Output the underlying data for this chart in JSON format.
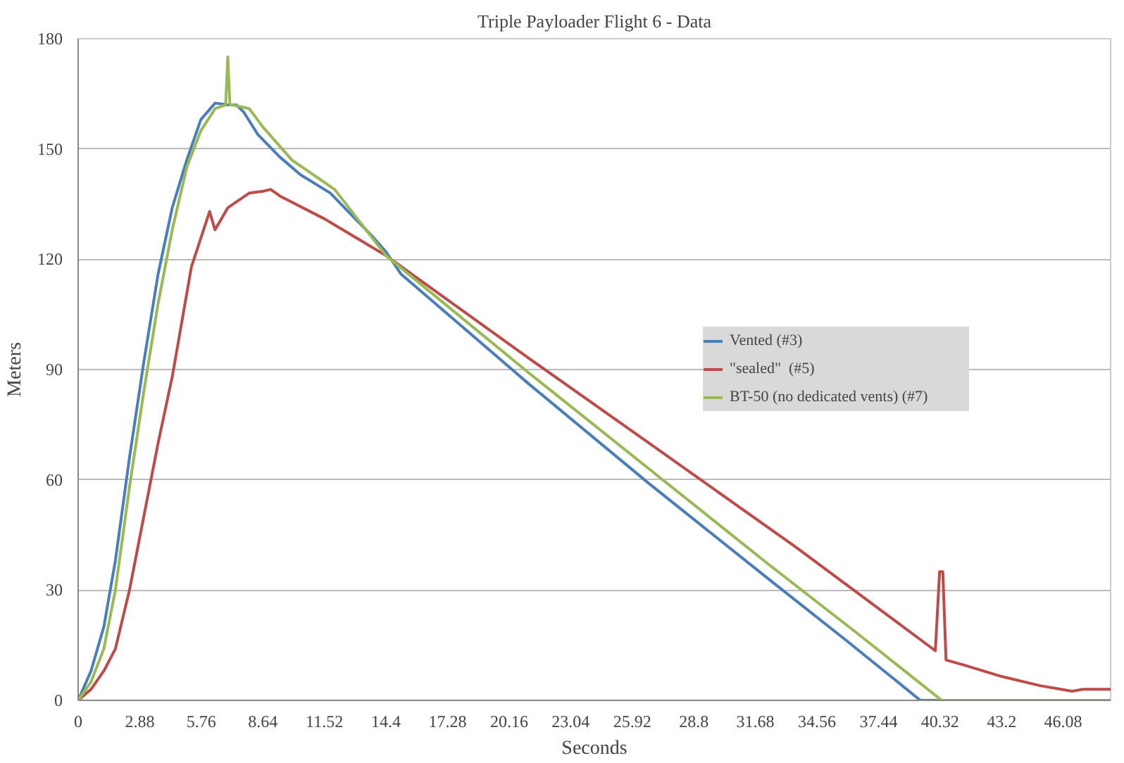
{
  "chart_data": {
    "type": "line",
    "title": "Triple Payloader Flight 6 - Data",
    "xlabel": "Seconds",
    "ylabel": "Meters",
    "xlim": [
      0,
      48.3
    ],
    "ylim": [
      0,
      180
    ],
    "xticks": [
      0,
      2.88,
      5.76,
      8.64,
      11.52,
      14.4,
      17.28,
      20.16,
      23.04,
      25.92,
      28.8,
      31.68,
      34.56,
      37.44,
      40.32,
      43.2,
      46.08
    ],
    "yticks": [
      0,
      30,
      60,
      90,
      120,
      150,
      180
    ],
    "grid": "y",
    "legend": "right",
    "line_style": "solid",
    "marker": "none",
    "series": [
      {
        "name": "Vented (#3)",
        "color": "#4a7ebb",
        "x": [
          0,
          0.6,
          1.2,
          1.74,
          2.4,
          3.07,
          3.74,
          4.4,
          5.08,
          5.74,
          6.41,
          7.0,
          7.4,
          7.75,
          8.4,
          9.4,
          10.4,
          11.8,
          13.8,
          14.4,
          15.1,
          21.1,
          26.7,
          32.3,
          36.0,
          39.4,
          41.0,
          44.0,
          48.3
        ],
        "values": [
          0,
          8,
          20,
          38,
          66,
          92,
          116,
          134,
          147,
          158,
          162.5,
          162,
          162,
          160,
          154,
          148,
          143,
          138,
          126,
          122,
          116,
          86,
          59,
          33,
          16,
          0,
          0,
          0,
          0
        ]
      },
      {
        "name": "\"sealed\"  (#5)",
        "color": "#be4b48",
        "x": [
          0,
          0.6,
          1.2,
          1.74,
          2.4,
          3.07,
          3.74,
          4.4,
          5.3,
          6.15,
          6.4,
          7.0,
          8.0,
          8.64,
          9.0,
          9.5,
          11.52,
          14.4,
          21.1,
          26.7,
          33.5,
          40.1,
          40.3,
          40.45,
          40.6,
          41.5,
          43.2,
          45.0,
          46.5,
          47.0,
          48.3
        ],
        "values": [
          0,
          3,
          8,
          14,
          30,
          50,
          70,
          88,
          118,
          133,
          128,
          134,
          138,
          138.5,
          139,
          137,
          131,
          121,
          93,
          70,
          42,
          13.5,
          35,
          35,
          11,
          9.5,
          6.5,
          4,
          2.5,
          3,
          3
        ]
      },
      {
        "name": "BT-50 (no dedicated vents) (#7)",
        "color": "#98b954",
        "x": [
          0,
          0.6,
          1.2,
          1.74,
          2.4,
          3.07,
          3.74,
          4.4,
          5.08,
          5.74,
          6.41,
          6.9,
          7.0,
          7.1,
          7.2,
          8.0,
          8.64,
          10.0,
          12.0,
          14.4,
          21.1,
          26.7,
          32.3,
          36.5,
          40.4,
          42.0,
          45.0,
          48.3
        ],
        "values": [
          0,
          5,
          14,
          30,
          58,
          84,
          108,
          128,
          145,
          155,
          161,
          162,
          175,
          162,
          162,
          161,
          156,
          147,
          139,
          121,
          89,
          63,
          37,
          18,
          0,
          0,
          0,
          0
        ]
      }
    ]
  }
}
